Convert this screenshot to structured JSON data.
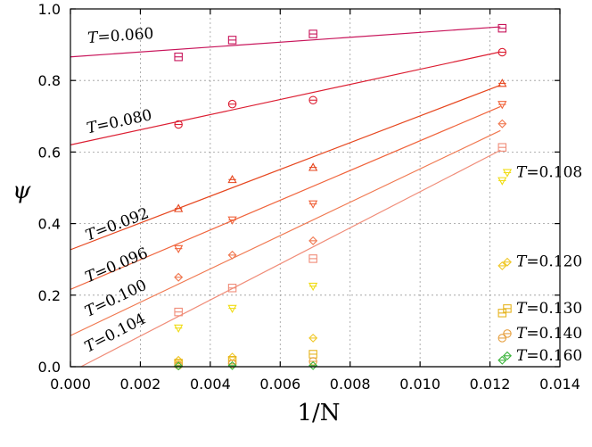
{
  "chart_data": {
    "type": "scatter",
    "xlabel": "1/N",
    "ylabel": "ψ",
    "xlim": [
      0.0,
      0.014
    ],
    "ylim": [
      0.0,
      1.0
    ],
    "xticks": [
      "0.000",
      "0.002",
      "0.004",
      "0.006",
      "0.008",
      "0.010",
      "0.012",
      "0.014"
    ],
    "yticks": [
      "0.0",
      "0.2",
      "0.4",
      "0.6",
      "0.8",
      "1.0"
    ],
    "grid": true,
    "baseline": {
      "y": 0.0,
      "color": "#a0a0a0"
    },
    "x_sizes": [
      0.00309,
      0.00463,
      0.00694,
      0.01235
    ],
    "series": [
      {
        "name": "T=0.060",
        "marker": "square",
        "color": "#c8145a",
        "values": [
          0.866,
          0.913,
          0.93,
          0.946
        ],
        "fit": {
          "x0": 0.0,
          "y0": 0.866,
          "x1": 0.0123,
          "y1": 0.95
        },
        "label_anchor": {
          "x": 0.0005,
          "y": 0.905
        }
      },
      {
        "name": "T=0.080",
        "marker": "circle",
        "color": "#dc1e32",
        "values": [
          0.677,
          0.734,
          0.745,
          0.879
        ],
        "fit": {
          "x0": 0.0,
          "y0": 0.62,
          "x1": 0.0123,
          "y1": 0.88
        },
        "label_anchor": {
          "x": 0.0005,
          "y": 0.652
        }
      },
      {
        "name": "T=0.092",
        "marker": "triangle-up",
        "color": "#e6461e",
        "values": [
          0.442,
          0.523,
          0.557,
          0.792
        ],
        "fit": {
          "x0": 0.0,
          "y0": 0.327,
          "x1": 0.0123,
          "y1": 0.787
        },
        "label_anchor": {
          "x": 0.0005,
          "y": 0.352
        }
      },
      {
        "name": "T=0.096",
        "marker": "triangle-down",
        "color": "#f0643c",
        "values": [
          0.33,
          0.41,
          0.455,
          0.733
        ],
        "fit": {
          "x0": 0.0,
          "y0": 0.216,
          "x1": 0.0123,
          "y1": 0.727
        },
        "label_anchor": {
          "x": 0.0005,
          "y": 0.235
        }
      },
      {
        "name": "T=0.100",
        "marker": "diamond",
        "color": "#f07850",
        "values": [
          0.25,
          0.312,
          0.352,
          0.679
        ],
        "fit": {
          "x0": 0.0,
          "y0": 0.087,
          "x1": 0.0123,
          "y1": 0.66
        },
        "label_anchor": {
          "x": 0.0005,
          "y": 0.139
        }
      },
      {
        "name": "T=0.104",
        "marker": "square",
        "color": "#f08c78",
        "values": [
          0.153,
          0.22,
          0.302,
          0.613
        ],
        "fit": {
          "x0": 0.0003,
          "y0": 0.0,
          "x1": 0.0123,
          "y1": 0.605
        },
        "label_anchor": {
          "x": 0.0005,
          "y": 0.04
        }
      },
      {
        "name": "T=0.108",
        "marker": "triangle-down",
        "color": "#f0dc14",
        "values": [
          0.108,
          0.163,
          0.225,
          0.52
        ],
        "label_anchor": {
          "x": 0.01275,
          "y": 0.53
        }
      },
      {
        "name": "T=0.120",
        "marker": "diamond",
        "color": "#f0c828",
        "values": [
          0.018,
          0.027,
          0.08,
          0.282
        ],
        "label_anchor": {
          "x": 0.01275,
          "y": 0.28
        }
      },
      {
        "name": "T=0.130",
        "marker": "square",
        "color": "#e6b41e",
        "values": [
          0.01,
          0.018,
          0.035,
          0.15
        ],
        "label_anchor": {
          "x": 0.01275,
          "y": 0.15
        }
      },
      {
        "name": "T=0.140",
        "marker": "circle",
        "color": "#e6a040",
        "values": [
          0.004,
          0.008,
          0.015,
          0.08
        ],
        "label_anchor": {
          "x": 0.01275,
          "y": 0.08
        }
      },
      {
        "name": "T=0.160",
        "marker": "diamond",
        "color": "#3cb43c",
        "values": [
          0.002,
          0.003,
          0.003,
          0.018
        ],
        "label_anchor": {
          "x": 0.01275,
          "y": 0.018
        }
      }
    ]
  }
}
